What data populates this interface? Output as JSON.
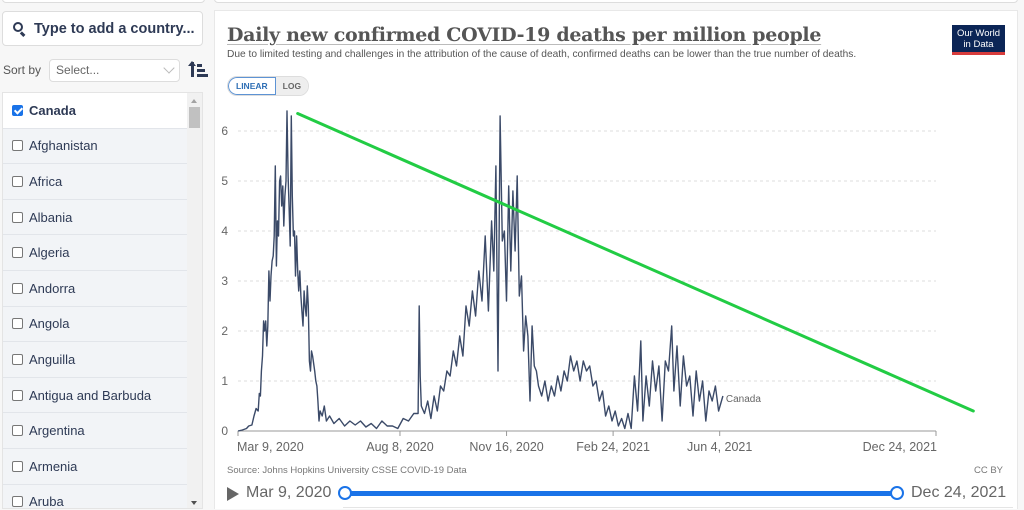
{
  "sidebar": {
    "search_placeholder": "Type to add a country...",
    "sort_label": "Sort by",
    "sort_select_value": "Select...",
    "countries": [
      {
        "name": "Canada",
        "checked": true
      },
      {
        "name": "Afghanistan",
        "checked": false
      },
      {
        "name": "Africa",
        "checked": false
      },
      {
        "name": "Albania",
        "checked": false
      },
      {
        "name": "Algeria",
        "checked": false
      },
      {
        "name": "Andorra",
        "checked": false
      },
      {
        "name": "Angola",
        "checked": false
      },
      {
        "name": "Anguilla",
        "checked": false
      },
      {
        "name": "Antigua and Barbuda",
        "checked": false
      },
      {
        "name": "Argentina",
        "checked": false
      },
      {
        "name": "Armenia",
        "checked": false
      },
      {
        "name": "Aruba",
        "checked": false
      }
    ]
  },
  "header": {
    "title": "Daily new confirmed COVID-19 deaths per million people",
    "subtitle": "Due to limited testing and challenges in the attribution of the cause of death, confirmed deaths can be lower than the true number of deaths.",
    "logo_line1": "Our World",
    "logo_line2": "in Data",
    "scale_linear": "LINEAR",
    "scale_log": "LOG"
  },
  "footer": {
    "source": "Source: Johns Hopkins University CSSE COVID-19 Data",
    "license": "CC BY"
  },
  "timeline": {
    "start_label": "Mar 9, 2020",
    "end_label": "Dec 24, 2021"
  },
  "colors": {
    "series": "#3b4a68",
    "trend": "#22cc44",
    "accent": "#1a73e8"
  },
  "chart_data": {
    "type": "line",
    "title": "Daily new confirmed COVID-19 deaths per million people",
    "xlabel": "",
    "ylabel": "",
    "x_range_days": [
      0,
      655
    ],
    "x_start_date": "2020-03-09",
    "ylim": [
      0,
      6.5
    ],
    "yticks": [
      0,
      1,
      2,
      3,
      4,
      5,
      6
    ],
    "xticks": [
      {
        "label": "Mar 9, 2020",
        "day": 0
      },
      {
        "label": "Aug 8, 2020",
        "day": 152
      },
      {
        "label": "Nov 16, 2020",
        "day": 252
      },
      {
        "label": "Feb 24, 2021",
        "day": 352
      },
      {
        "label": "Jun 4, 2021",
        "day": 452
      },
      {
        "label": "Dec 24, 2021",
        "day": 655
      }
    ],
    "grid": true,
    "series": [
      {
        "name": "Canada",
        "points": [
          [
            0,
            0.0
          ],
          [
            4,
            0.02
          ],
          [
            8,
            0.05
          ],
          [
            10,
            0.1
          ],
          [
            13,
            0.12
          ],
          [
            15,
            0.3
          ],
          [
            17,
            0.45
          ],
          [
            19,
            0.4
          ],
          [
            20,
            0.75
          ],
          [
            21,
            0.7
          ],
          [
            22,
            1.2
          ],
          [
            23,
            1.5
          ],
          [
            24,
            2.2
          ],
          [
            25,
            2.0
          ],
          [
            26,
            2.2
          ],
          [
            27,
            1.7
          ],
          [
            28,
            2.1
          ],
          [
            29,
            3.2
          ],
          [
            30,
            2.6
          ],
          [
            31,
            3.1
          ],
          [
            32,
            3.4
          ],
          [
            33,
            3.5
          ],
          [
            34,
            3.9
          ],
          [
            35,
            5.3
          ],
          [
            36,
            3.3
          ],
          [
            37,
            4.2
          ],
          [
            38,
            3.9
          ],
          [
            39,
            5.0
          ],
          [
            40,
            5.1
          ],
          [
            41,
            4.5
          ],
          [
            42,
            4.9
          ],
          [
            43,
            4.1
          ],
          [
            44,
            4.7
          ],
          [
            45,
            5.0
          ],
          [
            46,
            6.4
          ],
          [
            47,
            5.1
          ],
          [
            48,
            4.4
          ],
          [
            49,
            3.7
          ],
          [
            50,
            6.3
          ],
          [
            51,
            4.7
          ],
          [
            52,
            3.9
          ],
          [
            53,
            4.0
          ],
          [
            54,
            3.1
          ],
          [
            55,
            3.9
          ],
          [
            56,
            3.2
          ],
          [
            57,
            2.8
          ],
          [
            58,
            3.2
          ],
          [
            59,
            2.7
          ],
          [
            60,
            2.4
          ],
          [
            61,
            2.1
          ],
          [
            62,
            2.8
          ],
          [
            63,
            2.5
          ],
          [
            64,
            2.3
          ],
          [
            65,
            2.9
          ],
          [
            66,
            2.5
          ],
          [
            67,
            1.4
          ],
          [
            68,
            1.2
          ],
          [
            69,
            1.6
          ],
          [
            70,
            1.5
          ],
          [
            72,
            1.2
          ],
          [
            73,
            1.0
          ],
          [
            74,
            0.9
          ],
          [
            75,
            0.6
          ],
          [
            76,
            0.2
          ],
          [
            77,
            0.4
          ],
          [
            79,
            0.3
          ],
          [
            81,
            0.5
          ],
          [
            83,
            0.2
          ],
          [
            86,
            0.3
          ],
          [
            90,
            0.15
          ],
          [
            95,
            0.25
          ],
          [
            100,
            0.1
          ],
          [
            105,
            0.2
          ],
          [
            110,
            0.12
          ],
          [
            115,
            0.2
          ],
          [
            120,
            0.08
          ],
          [
            125,
            0.15
          ],
          [
            130,
            0.05
          ],
          [
            135,
            0.2
          ],
          [
            140,
            0.1
          ],
          [
            145,
            0.1
          ],
          [
            150,
            0.05
          ],
          [
            155,
            0.25
          ],
          [
            160,
            0.2
          ],
          [
            165,
            0.35
          ],
          [
            169,
            0.35
          ],
          [
            170,
            2.5
          ],
          [
            171,
            1.1
          ],
          [
            172,
            0.5
          ],
          [
            175,
            0.35
          ],
          [
            178,
            0.6
          ],
          [
            181,
            0.25
          ],
          [
            184,
            0.7
          ],
          [
            187,
            0.4
          ],
          [
            190,
            0.9
          ],
          [
            193,
            0.8
          ],
          [
            196,
            1.2
          ],
          [
            199,
            1.1
          ],
          [
            202,
            1.6
          ],
          [
            205,
            1.3
          ],
          [
            208,
            1.9
          ],
          [
            211,
            1.5
          ],
          [
            214,
            2.5
          ],
          [
            217,
            2.1
          ],
          [
            220,
            2.8
          ],
          [
            223,
            2.3
          ],
          [
            226,
            3.2
          ],
          [
            229,
            2.6
          ],
          [
            232,
            3.9
          ],
          [
            235,
            2.4
          ],
          [
            238,
            4.2
          ],
          [
            240,
            3.2
          ],
          [
            242,
            5.3
          ],
          [
            244,
            1.2
          ],
          [
            246,
            6.3
          ],
          [
            248,
            3.8
          ],
          [
            250,
            4.0
          ],
          [
            252,
            2.6
          ],
          [
            254,
            4.9
          ],
          [
            256,
            3.2
          ],
          [
            258,
            4.8
          ],
          [
            260,
            3.6
          ],
          [
            262,
            5.1
          ],
          [
            264,
            2.7
          ],
          [
            266,
            3.1
          ],
          [
            268,
            1.6
          ],
          [
            270,
            2.3
          ],
          [
            272,
            1.9
          ],
          [
            274,
            0.6
          ],
          [
            276,
            2.1
          ],
          [
            278,
            1.3
          ],
          [
            280,
            1.2
          ],
          [
            282,
            0.9
          ],
          [
            285,
            0.7
          ],
          [
            288,
            1.0
          ],
          [
            291,
            0.6
          ],
          [
            294,
            0.9
          ],
          [
            297,
            0.7
          ],
          [
            300,
            1.1
          ],
          [
            303,
            0.8
          ],
          [
            306,
            1.2
          ],
          [
            309,
            1.0
          ],
          [
            312,
            1.5
          ],
          [
            315,
            1.2
          ],
          [
            318,
            1.4
          ],
          [
            321,
            1.0
          ],
          [
            324,
            1.4
          ],
          [
            327,
            1.2
          ],
          [
            330,
            1.3
          ],
          [
            333,
            0.9
          ],
          [
            336,
            1.0
          ],
          [
            339,
            0.6
          ],
          [
            342,
            0.8
          ],
          [
            345,
            0.3
          ],
          [
            348,
            0.5
          ],
          [
            351,
            0.2
          ],
          [
            354,
            0.4
          ],
          [
            357,
            0.1
          ],
          [
            360,
            0.25
          ],
          [
            363,
            0.05
          ],
          [
            366,
            0.35
          ],
          [
            369,
            0.05
          ],
          [
            372,
            1.1
          ],
          [
            375,
            0.4
          ],
          [
            378,
            1.8
          ],
          [
            380,
            0.2
          ],
          [
            383,
            1.1
          ],
          [
            386,
            0.5
          ],
          [
            389,
            1.4
          ],
          [
            392,
            0.8
          ],
          [
            395,
            1.3
          ],
          [
            398,
            0.2
          ],
          [
            401,
            1.4
          ],
          [
            404,
            1.2
          ],
          [
            407,
            2.1
          ],
          [
            409,
            0.8
          ],
          [
            412,
            1.7
          ],
          [
            415,
            0.5
          ],
          [
            418,
            1.5
          ],
          [
            421,
            0.9
          ],
          [
            424,
            1.1
          ],
          [
            427,
            0.3
          ],
          [
            430,
            1.2
          ],
          [
            433,
            0.6
          ],
          [
            436,
            1.0
          ],
          [
            439,
            0.2
          ],
          [
            442,
            0.8
          ],
          [
            445,
            0.6
          ],
          [
            448,
            0.9
          ],
          [
            451,
            0.4
          ],
          [
            455,
            0.7
          ]
        ]
      },
      {
        "name": "Trend line (annotation)",
        "points": [
          [
            56,
            6.35
          ],
          [
            690,
            0.4
          ]
        ]
      }
    ],
    "series_end_label": "Canada"
  }
}
